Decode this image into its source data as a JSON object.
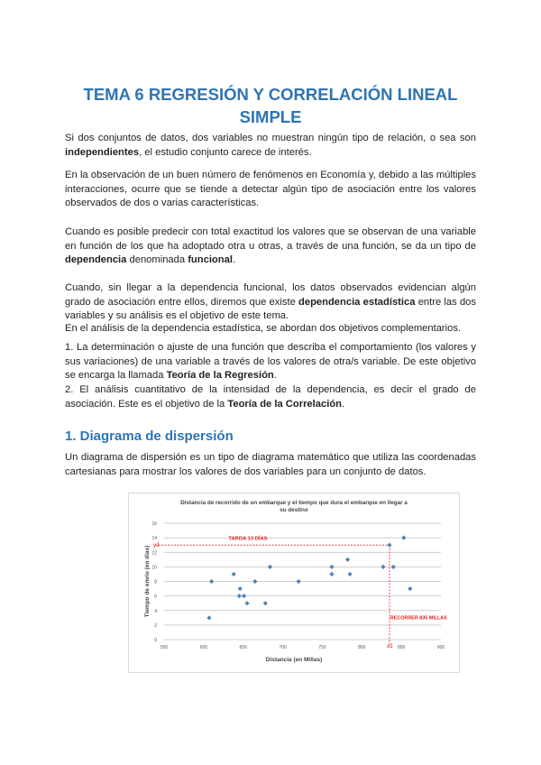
{
  "title": "TEMA 6 REGRESIÓN Y CORRELACIÓN LINEAL SIMPLE",
  "paragraphs": [
    [
      {
        "t": "Si dos conjuntos de datos, dos variables no muestran ningún tipo de relación, o sea son "
      },
      {
        "t": "independientes",
        "b": true
      },
      {
        "t": ", el estudio conjunto carece de interés."
      }
    ],
    [
      {
        "t": "En la observación de un buen número de fenómenos en Economía y, debido a las múltiples interacciones, ocurre que se tiende a detectar algún tipo de asociación entre los valores observados de dos o varias características."
      }
    ],
    [
      {
        "t": "Cuando es posible predecir con total exactitud los valores que se observan de una variable en función de los que ha adoptado otra u otras, a través de una función, se da un tipo de "
      },
      {
        "t": "dependencia",
        "b": true
      },
      {
        "t": " denominada "
      },
      {
        "t": "funcional",
        "b": true
      },
      {
        "t": "."
      }
    ],
    [
      {
        "t": "Cuando, sin llegar a la dependencia funcional, los datos observados evidencian algún grado de asociación entre ellos, diremos que existe "
      },
      {
        "t": "dependencia estadística",
        "b": true
      },
      {
        "t": " entre las dos variables y su análisis es el objetivo de este tema."
      }
    ],
    [
      {
        "t": "En el análisis de la dependencia estadística, se abordan dos objetivos complementarios."
      }
    ],
    [
      {
        "t": "1. La determinación o ajuste de una función que describa el comportamiento (los valores y sus variaciones) de una variable a través de los valores de otra/s variable. De este objetivo se encarga la llamada "
      },
      {
        "t": "Teoría de la Regresión",
        "b": true
      },
      {
        "t": "."
      }
    ],
    [
      {
        "t": "2. El análisis cuantitativo de la intensidad de la dependencia, es decir el grado de asociación. Este es el objetivo de la "
      },
      {
        "t": "Teoría de la Correlación",
        "b": true
      },
      {
        "t": "."
      }
    ],
    [
      {
        "t": "Un diagrama de dispersión es un tipo de diagrama matemático que utiliza las coordenadas cartesianas para mostrar los valores de dos variables para un conjunto de datos."
      }
    ]
  ],
  "section_heading": "1. Diagrama de dispersión",
  "chart_data": {
    "type": "scatter",
    "title": "Distancia de recorrido de un embarque y el tiempo que dura el embarque en llegar a su destino",
    "xlabel": "Distancia (en Millas)",
    "ylabel": "Tiempo de envío (en días)",
    "xlim": [
      550,
      900
    ],
    "ylim": [
      0,
      16
    ],
    "xticks": [
      "550",
      "600",
      "650",
      "700",
      "750",
      "800",
      "850",
      "900"
    ],
    "yticks": [
      "0",
      "2",
      "4",
      "6",
      "8",
      "10",
      "12",
      "14",
      "16"
    ],
    "grid": true,
    "marker_color": "#4f81bd",
    "annotation_color": "#e02020",
    "points": [
      [
        607,
        3
      ],
      [
        610,
        8
      ],
      [
        638,
        9
      ],
      [
        646,
        7
      ],
      [
        645,
        6
      ],
      [
        651,
        6
      ],
      [
        655,
        5
      ],
      [
        665,
        8
      ],
      [
        678,
        5
      ],
      [
        684,
        10
      ],
      [
        720,
        8
      ],
      [
        762,
        10
      ],
      [
        762,
        9
      ],
      [
        782,
        11
      ],
      [
        785,
        9
      ],
      [
        827,
        10
      ],
      [
        835,
        13
      ],
      [
        840,
        10
      ],
      [
        853,
        14
      ],
      [
        861,
        7
      ]
    ],
    "annotations": {
      "y_label": "TARDA 13 DÍAS",
      "x_label": "RECORRER 835 MILLAS",
      "y_symbol": "y1",
      "x_symbol": "x1",
      "x_value": 835,
      "y_value": 13
    }
  }
}
